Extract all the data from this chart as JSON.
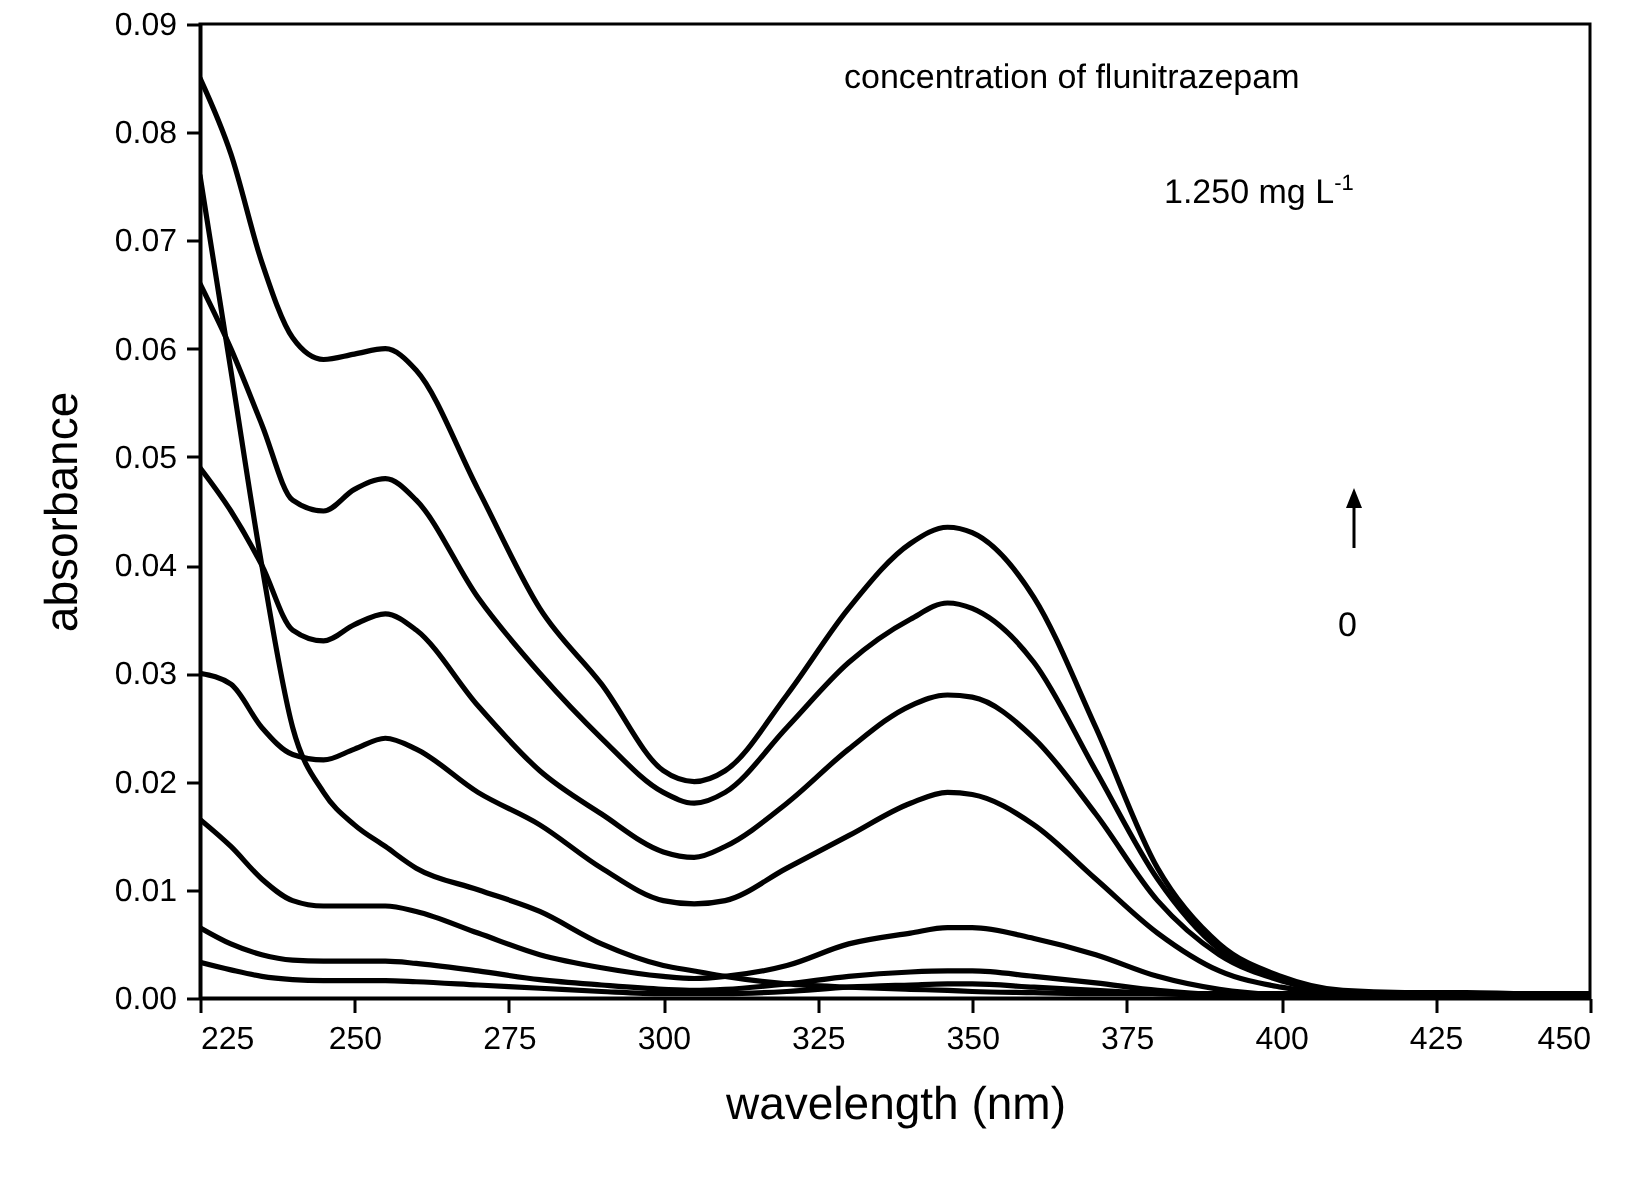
{
  "chart_data": {
    "type": "line",
    "xlabel": "wavelength (nm)",
    "ylabel": "absorbance",
    "annotations": [
      "concentration of flunitrazepam",
      "1.250 mg L$^{-1}$",
      "0"
    ],
    "x": [
      225,
      230,
      235,
      240,
      245,
      250,
      255,
      260,
      270,
      280,
      290,
      300,
      305,
      310,
      320,
      330,
      340,
      346,
      350,
      360,
      370,
      380,
      390,
      400,
      410,
      420,
      430,
      440,
      450
    ],
    "series": [
      {
        "color": "#000000",
        "values": [
          0.085,
          0.078,
          0.068,
          0.061,
          0.059,
          0.0595,
          0.06,
          0.058,
          0.047,
          0.036,
          0.029,
          0.021,
          0.02,
          0.021,
          0.028,
          0.036,
          0.042,
          0.0435,
          0.043,
          0.037,
          0.025,
          0.012,
          0.005,
          0.002,
          0.0007,
          0.0005,
          0.0005,
          0.0004,
          0.0004
        ]
      },
      {
        "color": "#000000",
        "values": [
          0.066,
          0.06,
          0.053,
          0.046,
          0.045,
          0.047,
          0.048,
          0.046,
          0.037,
          0.03,
          0.024,
          0.019,
          0.018,
          0.019,
          0.025,
          0.031,
          0.035,
          0.0365,
          0.036,
          0.031,
          0.021,
          0.011,
          0.0045,
          0.0018,
          0.0006,
          0.0004,
          0.0004,
          0.0004,
          0.0004
        ]
      },
      {
        "color": "#000000",
        "values": [
          0.049,
          0.045,
          0.04,
          0.034,
          0.033,
          0.0345,
          0.0355,
          0.034,
          0.027,
          0.021,
          0.017,
          0.0135,
          0.013,
          0.014,
          0.018,
          0.023,
          0.027,
          0.028,
          0.0278,
          0.024,
          0.017,
          0.009,
          0.004,
          0.0016,
          0.0005,
          0.0004,
          0.0004,
          0.0004,
          0.0004
        ]
      },
      {
        "color": "#000000",
        "values": [
          0.03,
          0.029,
          0.025,
          0.0225,
          0.022,
          0.023,
          0.024,
          0.023,
          0.019,
          0.016,
          0.012,
          0.009,
          0.0087,
          0.009,
          0.012,
          0.015,
          0.018,
          0.019,
          0.0188,
          0.016,
          0.011,
          0.006,
          0.0025,
          0.001,
          0.0004,
          0.0003,
          0.0003,
          0.0003,
          0.0003
        ]
      },
      {
        "color": "#000000",
        "values": [
          0.0165,
          0.014,
          0.011,
          0.009,
          0.0085,
          0.0085,
          0.0085,
          0.008,
          0.006,
          0.004,
          0.0028,
          0.002,
          0.0018,
          0.002,
          0.003,
          0.005,
          0.006,
          0.0065,
          0.0065,
          0.0055,
          0.004,
          0.002,
          0.0008,
          0.0003,
          0.0002,
          0.0002,
          0.0002,
          0.0002,
          0.0002
        ]
      },
      {
        "color": "#000000",
        "values": [
          0.0065,
          0.005,
          0.004,
          0.0035,
          0.0034,
          0.0034,
          0.0034,
          0.0032,
          0.0025,
          0.0017,
          0.0012,
          0.0008,
          0.0007,
          0.0008,
          0.0013,
          0.002,
          0.0024,
          0.0025,
          0.0025,
          0.002,
          0.0014,
          0.0007,
          0.0003,
          0.0002,
          0.0002,
          0.0002,
          0.0002,
          0.0002,
          0.0002
        ]
      },
      {
        "color": "#000000",
        "values": [
          0.0033,
          0.0026,
          0.002,
          0.0017,
          0.0016,
          0.0016,
          0.0016,
          0.0015,
          0.0012,
          0.0009,
          0.0006,
          0.0004,
          0.0004,
          0.0004,
          0.0006,
          0.001,
          0.0012,
          0.0013,
          0.0013,
          0.001,
          0.0007,
          0.0004,
          0.0002,
          0.0001,
          0.0001,
          0.0001,
          0.0001,
          0.0001,
          0.0001
        ]
      },
      {
        "color": "#000000",
        "values": [
          0.076,
          0.058,
          0.04,
          0.025,
          0.019,
          0.016,
          0.014,
          0.012,
          0.01,
          0.008,
          0.005,
          0.003,
          0.0025,
          0.002,
          0.0013,
          0.001,
          0.0008,
          0.0007,
          0.0006,
          0.0005,
          0.0004,
          0.0004,
          0.0004,
          0.0004,
          0.0004,
          0.0004,
          0.0004,
          0.0004,
          0.0004
        ]
      }
    ],
    "xlim": [
      225,
      450
    ],
    "xticks": [
      225,
      250,
      275,
      300,
      325,
      350,
      375,
      400,
      425,
      450
    ],
    "ylim": [
      0,
      0.09
    ],
    "yticks": [
      {
        "value": 0,
        "label": "0.00"
      },
      0.01,
      0.02,
      0.03,
      0.04,
      0.05,
      0.06,
      0.07,
      0.08,
      0.09
    ],
    "line_style": "solid"
  }
}
